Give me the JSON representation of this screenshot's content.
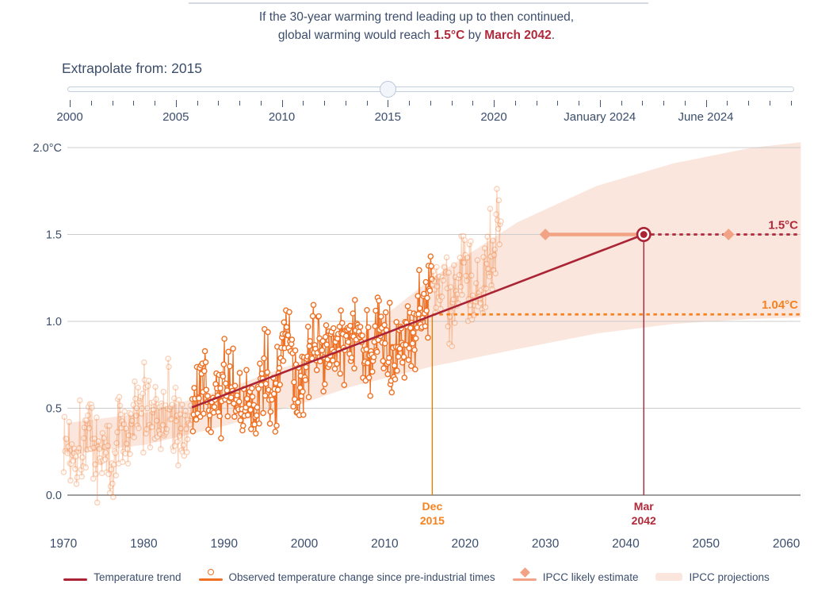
{
  "header": {
    "line1": "If the 30-year warming trend leading up to then continued,",
    "line2_prefix": "global warming would reach ",
    "highlight_temp": "1.5°C",
    "line2_mid": " by ",
    "highlight_date": "March 2042",
    "line2_suffix": "."
  },
  "slider": {
    "label": "Extrapolate from: 2015",
    "value": "2015",
    "axis_labels": [
      "2000",
      "2005",
      "2010",
      "2015",
      "2020",
      "January 2024",
      "June 2024"
    ],
    "tick_count": 35,
    "major_every": 5,
    "handle_tick_index": 15
  },
  "colors": {
    "slate_text": "#3c4e6b",
    "crimson": "#ab2435",
    "crimson_label": "#b2293a",
    "orange": "#ee7125",
    "orange_label": "#f5821f",
    "orange_vline": "#d4820a",
    "salmon": "#f2a385",
    "band_fill": "#fae6dc",
    "gridline": "#cccccc",
    "zero_axis": "#3f3f3f"
  },
  "chart_data": {
    "type": "line+scatter+band",
    "x_range": [
      1969.5,
      2061.8
    ],
    "y_range": [
      -0.35,
      2.05
    ],
    "grid": "horizontal",
    "yticks": [
      {
        "value": 0.0,
        "label": "0.0"
      },
      {
        "value": 0.5,
        "label": "0.5"
      },
      {
        "value": 1.0,
        "label": "1.0"
      },
      {
        "value": 1.5,
        "label": "1.5"
      },
      {
        "value": 2.0,
        "label": "2.0°C"
      }
    ],
    "xticks": [
      {
        "value": 1970,
        "label": "1970"
      },
      {
        "value": 1980,
        "label": "1980"
      },
      {
        "value": 1990,
        "label": "1990"
      },
      {
        "value": 2000,
        "label": "2000"
      },
      {
        "value": 2010,
        "label": "2010"
      },
      {
        "value": 2020,
        "label": "2020"
      },
      {
        "value": 2030,
        "label": "2030"
      },
      {
        "value": 2040,
        "label": "2040"
      },
      {
        "value": 2050,
        "label": "2050"
      },
      {
        "value": 2060,
        "label": "2060"
      }
    ],
    "observed": {
      "name": "Observed temperature change since pre-industrial times",
      "start_year": 1970,
      "end_year": 2024.5,
      "annual_means": [
        0.32,
        0.25,
        0.3,
        0.42,
        0.22,
        0.28,
        0.14,
        0.42,
        0.34,
        0.44,
        0.5,
        0.52,
        0.4,
        0.56,
        0.4,
        0.4,
        0.46,
        0.58,
        0.6,
        0.52,
        0.66,
        0.62,
        0.46,
        0.5,
        0.56,
        0.7,
        0.6,
        0.74,
        0.88,
        0.64,
        0.66,
        0.8,
        0.86,
        0.88,
        0.8,
        0.92,
        0.87,
        0.92,
        0.78,
        0.9,
        0.97,
        0.84,
        0.89,
        0.92,
        0.99,
        1.12,
        1.28,
        1.18,
        1.08,
        1.22,
        1.28,
        1.12,
        1.16,
        1.4,
        1.58
      ],
      "monthly_noise_amplitude": 0.3,
      "noise_seed": 1337,
      "highlight_window": [
        1986.0,
        2015.92
      ]
    },
    "trend": {
      "name": "Temperature trend",
      "from": {
        "year": 1986.0,
        "value": 0.505
      },
      "to": {
        "year": 2042.25,
        "value": 1.5
      }
    },
    "thresholds": [
      {
        "label": "1.5°C",
        "value": 1.5,
        "from_year": 2042.25,
        "color_key": "crimson_label"
      },
      {
        "label": "1.04°C",
        "value": 1.04,
        "from_year": 2015.92,
        "color_key": "orange_label"
      }
    ],
    "ipcc_likely": {
      "name": "IPCC likely estimate",
      "value": 1.5,
      "solid_from": 2030.0,
      "solid_to": 2042.25,
      "diamond_years": [
        2030.0,
        2052.8
      ]
    },
    "projection_band": {
      "name": "IPCC projections",
      "years": [
        1970.5,
        1980.4,
        1990.2,
        2000.1,
        2006.0,
        2015.9,
        2026.5,
        2036.4,
        2046.0,
        2055.8,
        2061.8
      ],
      "hi": [
        0.415,
        0.475,
        0.61,
        0.78,
        0.886,
        1.25,
        1.57,
        1.78,
        1.91,
        2.0,
        2.03
      ],
      "lo": [
        0.233,
        0.292,
        0.4,
        0.534,
        0.626,
        0.74,
        0.84,
        0.93,
        0.986,
        1.014,
        1.023
      ]
    },
    "event_markers": [
      {
        "lines": [
          "Dec",
          "2015"
        ],
        "year": 2015.92,
        "value": 1.04,
        "color_key": "orange_label",
        "vline_color_key": "orange_vline",
        "style": "vline-only"
      },
      {
        "lines": [
          "Mar",
          "2042"
        ],
        "year": 2042.25,
        "value": 1.5,
        "color_key": "crimson_label",
        "vline_color_key": "crimson",
        "style": "vline-ring"
      }
    ]
  },
  "legend": [
    {
      "label": "Temperature trend",
      "type": "line",
      "color_key": "crimson"
    },
    {
      "label": "Observed temperature change since pre-industrial times",
      "type": "line-circle",
      "color_key": "orange"
    },
    {
      "label": "IPCC likely estimate",
      "type": "line-diamond",
      "color_key": "salmon"
    },
    {
      "label": "IPCC projections",
      "type": "band",
      "color_key": "band_fill"
    }
  ]
}
